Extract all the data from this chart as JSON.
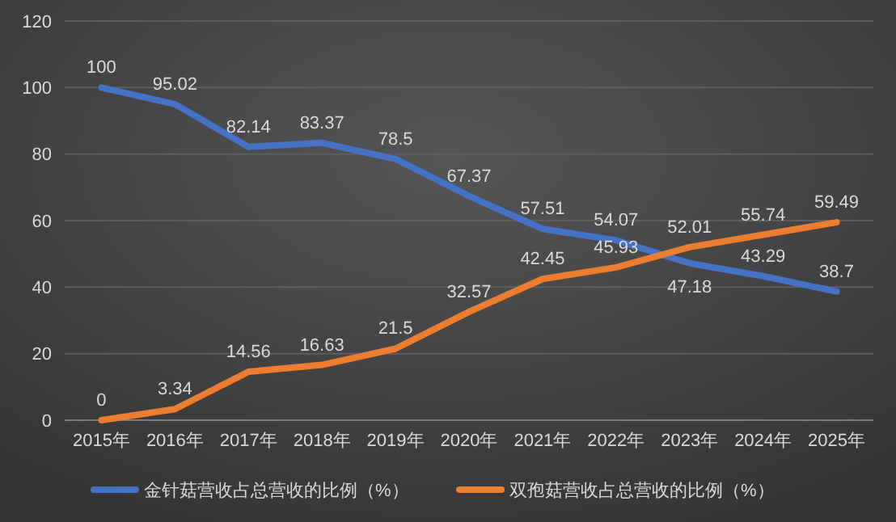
{
  "chart_data": {
    "type": "line",
    "categories": [
      "2015年",
      "2016年",
      "2017年",
      "2018年",
      "2019年",
      "2020年",
      "2021年",
      "2022年",
      "2023年",
      "2024年",
      "2025年"
    ],
    "series": [
      {
        "name": "金针菇营收占总营收的比例（%）",
        "color": "#4472c4",
        "values": [
          100,
          95.02,
          82.14,
          83.37,
          78.5,
          67.37,
          57.51,
          54.07,
          47.18,
          43.29,
          38.7
        ]
      },
      {
        "name": "双孢菇营收占总营收的比例（%）",
        "color": "#ed7d31",
        "values": [
          0,
          3.34,
          14.56,
          16.63,
          21.5,
          32.57,
          42.45,
          45.93,
          52.01,
          55.74,
          59.49
        ]
      }
    ],
    "ylim": [
      0,
      120
    ],
    "yticks": [
      0,
      20,
      40,
      60,
      80,
      100,
      120
    ],
    "grid": "y",
    "legend": "bottom",
    "data_labels": true,
    "marker": "none",
    "line_style": "solid"
  }
}
